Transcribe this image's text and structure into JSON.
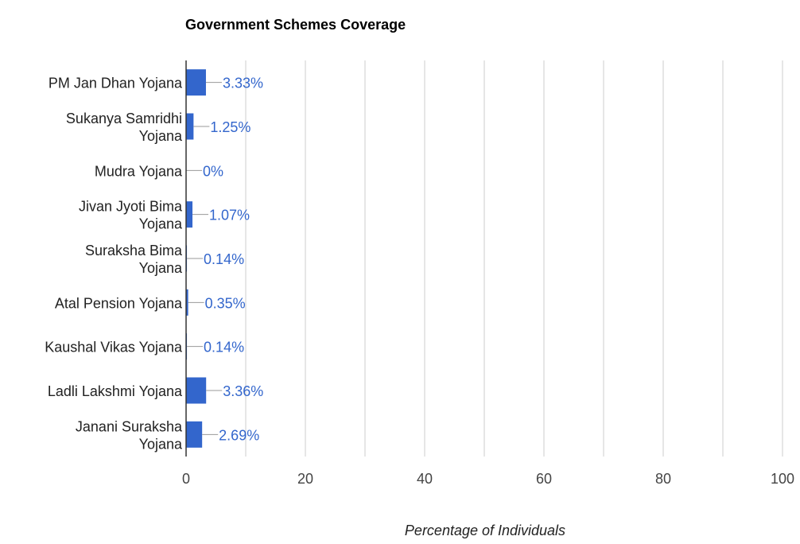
{
  "chart_data": {
    "type": "bar",
    "orientation": "horizontal",
    "title": "Government Schemes Coverage",
    "xlabel": "Percentage of Individuals",
    "ylabel": "",
    "categories": [
      [
        "PM Jan Dhan Yojana"
      ],
      [
        "Sukanya Samridhi",
        "Yojana"
      ],
      [
        "Mudra Yojana"
      ],
      [
        "Jivan Jyoti Bima",
        "Yojana"
      ],
      [
        "Suraksha Bima",
        "Yojana"
      ],
      [
        "Atal Pension Yojana"
      ],
      [
        "Kaushal Vikas Yojana"
      ],
      [
        "Ladli Lakshmi Yojana"
      ],
      [
        "Janani Suraksha",
        "Yojana"
      ]
    ],
    "values": [
      3.33,
      1.25,
      0,
      1.07,
      0.14,
      0.35,
      0.14,
      3.36,
      2.69
    ],
    "data_labels": [
      "3.33%",
      "1.25%",
      "0%",
      "1.07%",
      "0.14%",
      "0.35%",
      "0.14%",
      "3.36%",
      "2.69%"
    ],
    "xlim": [
      0,
      100
    ],
    "xticks": [
      0,
      20,
      40,
      60,
      80,
      100
    ],
    "xtick_labels": [
      "0",
      "20",
      "40",
      "60",
      "80",
      "100"
    ],
    "grid": true,
    "legend": "none",
    "colors": {
      "bar": "#3366cc",
      "data_label": "#3366cc",
      "grid": "#cccccc",
      "axis": "#333333",
      "leader": "#999999"
    }
  }
}
